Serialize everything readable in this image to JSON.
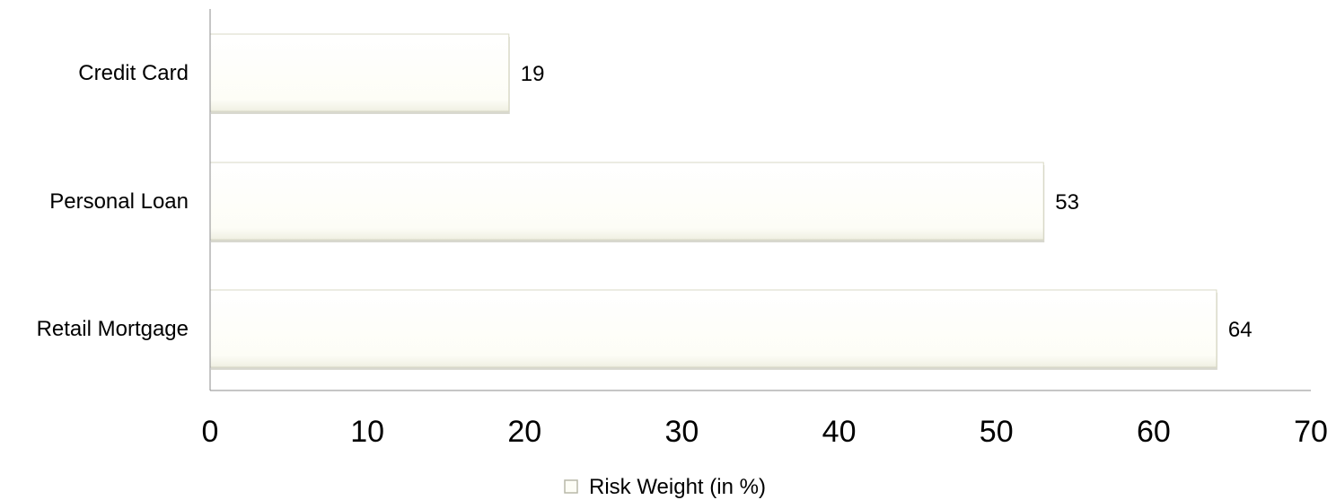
{
  "chart_data": {
    "type": "bar",
    "orientation": "horizontal",
    "categories": [
      "Credit Card",
      "Personal Loan",
      "Retail Mortgage"
    ],
    "series": [
      {
        "name": "Risk Weight (in %)",
        "values": [
          19,
          53,
          64
        ]
      }
    ],
    "data_labels": [
      "19",
      "53",
      "64"
    ],
    "xlim": [
      0,
      70
    ],
    "xticks": [
      0,
      10,
      20,
      30,
      40,
      50,
      60,
      70
    ],
    "xtick_labels": [
      "0",
      "10",
      "20",
      "30",
      "40",
      "50",
      "60",
      "70"
    ],
    "title": "",
    "xlabel": "",
    "ylabel": "",
    "grid": false,
    "legend_position": "bottom",
    "colors": {
      "bar_fill": "#fdfdf6",
      "bar_edge": "#d9d9c4",
      "bar_shadow": "#b8b8a8",
      "axis": "#8c8c8c"
    }
  }
}
